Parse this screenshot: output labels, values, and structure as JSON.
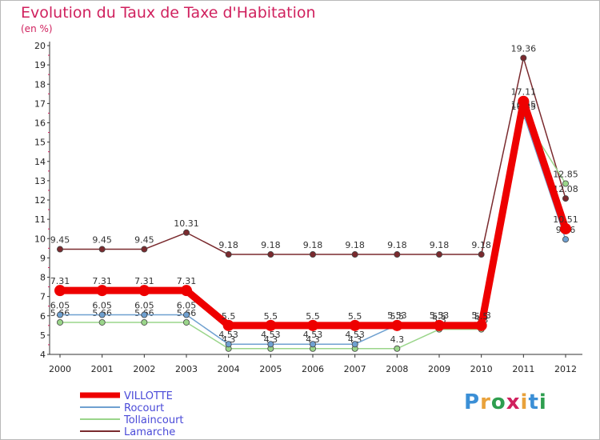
{
  "chart_data": {
    "type": "line",
    "title": "Evolution du Taux de Taxe d'Habitation",
    "ylabel": "(en %)",
    "xlabel": "",
    "ylim": [
      4,
      20
    ],
    "yticks": [
      "4",
      "5",
      "6",
      "7",
      "8",
      "9",
      "10",
      "11",
      "12",
      "13",
      "14",
      "15",
      "16",
      "17",
      "18",
      "19",
      "20"
    ],
    "x": [
      "2000",
      "2001",
      "2002",
      "2003",
      "2004",
      "2005",
      "2006",
      "2007",
      "2008",
      "2009",
      "2010",
      "2011",
      "2012"
    ],
    "series": [
      {
        "name": "Lamarche",
        "color": "#7a2a2e",
        "values": [
          9.45,
          9.45,
          9.45,
          10.31,
          9.18,
          9.18,
          9.18,
          9.18,
          9.18,
          9.18,
          9.18,
          19.36,
          12.08
        ],
        "labels": [
          "9.45",
          "9.45",
          "9.45",
          "10.31",
          "9.18",
          "9.18",
          "9.18",
          "9.18",
          "9.18",
          "9.18",
          "9.18",
          "19.36",
          "12.08"
        ]
      },
      {
        "name": "Tollaincourt",
        "color": "#9ad58a",
        "values": [
          5.66,
          5.66,
          5.66,
          5.66,
          4.3,
          4.3,
          4.3,
          4.3,
          4.3,
          5.3,
          5.3,
          16.35,
          12.85
        ],
        "labels": [
          "5.66",
          "5.66",
          "5.66",
          "5.66",
          "4.3",
          "4.3",
          "4.3",
          "4.3",
          "4.3",
          "5.3",
          "5.3",
          "16.35",
          "12.85"
        ]
      },
      {
        "name": "Rocourt",
        "color": "#6fa0d0",
        "values": [
          6.05,
          6.05,
          6.05,
          6.05,
          4.53,
          4.53,
          4.53,
          4.53,
          5.53,
          5.53,
          5.53,
          16.45,
          9.96
        ],
        "labels": [
          "6.05",
          "6.05",
          "6.05",
          "6.05",
          "4.53",
          "4.53",
          "4.53",
          "4.53",
          "5.53",
          "5.53",
          "5.53",
          "16.45",
          "9.96"
        ]
      },
      {
        "name": "VILLOTTE",
        "color": "#ee0000",
        "values": [
          7.31,
          7.31,
          7.31,
          7.31,
          5.5,
          5.5,
          5.5,
          5.5,
          5.5,
          5.5,
          5.5,
          17.11,
          10.51
        ],
        "labels": [
          "7.31",
          "7.31",
          "7.31",
          "7.31",
          "5.5",
          "5.5",
          "5.5",
          "5.5",
          "5.5",
          "5.5",
          "5.5",
          "17.11",
          "10.51"
        ]
      }
    ],
    "legend": [
      "VILLOTTE",
      "Rocourt",
      "Tollaincourt",
      "Lamarche"
    ],
    "legend_position": "bottom-left",
    "grid": false
  },
  "branding": {
    "logo_text": "Proxiti"
  }
}
